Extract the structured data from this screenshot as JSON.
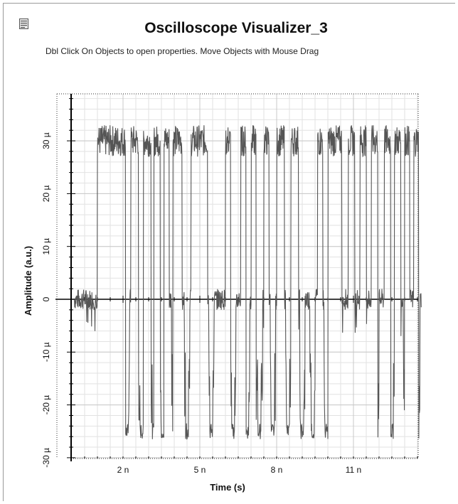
{
  "window": {
    "title": "Oscilloscope Visualizer_3",
    "hint": "Dbl Click On Objects to open properties.  Move Objects with Mouse Drag",
    "icon": "document-icon"
  },
  "chart_data": {
    "type": "line",
    "title": "",
    "xlabel": "Time (s)",
    "ylabel": "Amplitude (a.u.)",
    "xlim": [
      0,
      14.5
    ],
    "ylim": [
      -30,
      39
    ],
    "x_unit": "n",
    "y_unit": "µ",
    "grid": true,
    "x_ticks": [
      {
        "value": 2,
        "label": "2 n"
      },
      {
        "value": 5,
        "label": "5 n"
      },
      {
        "value": 8,
        "label": "8 n"
      },
      {
        "value": 11,
        "label": "11 n"
      }
    ],
    "y_ticks": [
      {
        "value": -30,
        "label": "-30 µ"
      },
      {
        "value": -20,
        "label": "-20 µ"
      },
      {
        "value": -10,
        "label": "-10 µ"
      },
      {
        "value": 0,
        "label": "0"
      },
      {
        "value": 10,
        "label": "10 µ"
      },
      {
        "value": 20,
        "label": "20 µ"
      },
      {
        "value": 30,
        "label": "30 µ"
      }
    ],
    "series": [
      {
        "color": "#555555",
        "baseline": 0,
        "high_level": 30,
        "low_level": -25,
        "positive_pulses": [
          [
            1.0,
            2.1
          ],
          [
            2.3,
            2.6
          ],
          [
            2.8,
            3.1
          ],
          [
            3.2,
            3.45
          ],
          [
            3.6,
            3.8
          ],
          [
            3.95,
            4.3
          ],
          [
            4.65,
            5.3
          ],
          [
            6.0,
            6.2
          ],
          [
            6.6,
            6.8
          ],
          [
            7.0,
            7.2
          ],
          [
            7.5,
            7.7
          ],
          [
            8.0,
            8.3
          ],
          [
            8.55,
            8.85
          ],
          [
            9.6,
            9.8
          ],
          [
            10.0,
            10.55
          ],
          [
            10.8,
            11.05
          ],
          [
            11.25,
            11.5
          ],
          [
            11.7,
            11.95
          ],
          [
            12.2,
            12.45
          ],
          [
            12.6,
            12.85
          ],
          [
            13.0,
            13.2
          ],
          [
            13.35,
            13.55
          ]
        ],
        "negative_pulses": [
          [
            1.1,
            1.3
          ],
          [
            1.55,
            1.75
          ],
          [
            2.05,
            2.25
          ],
          [
            2.6,
            2.85
          ],
          [
            3.1,
            3.3
          ],
          [
            3.45,
            3.65
          ],
          [
            3.9,
            4.1
          ],
          [
            4.4,
            4.6
          ],
          [
            5.35,
            5.55
          ],
          [
            6.2,
            6.4
          ],
          [
            6.75,
            6.95
          ],
          [
            7.2,
            7.45
          ],
          [
            7.75,
            7.95
          ],
          [
            8.35,
            8.55
          ],
          [
            8.9,
            9.1
          ],
          [
            9.3,
            9.5
          ],
          [
            9.85,
            10.05
          ],
          [
            10.3,
            10.5
          ],
          [
            10.85,
            11.05
          ],
          [
            11.25,
            11.45
          ],
          [
            11.8,
            12.0
          ],
          [
            12.4,
            12.6
          ],
          [
            12.95,
            13.15
          ],
          [
            13.4,
            13.6
          ]
        ]
      }
    ]
  }
}
